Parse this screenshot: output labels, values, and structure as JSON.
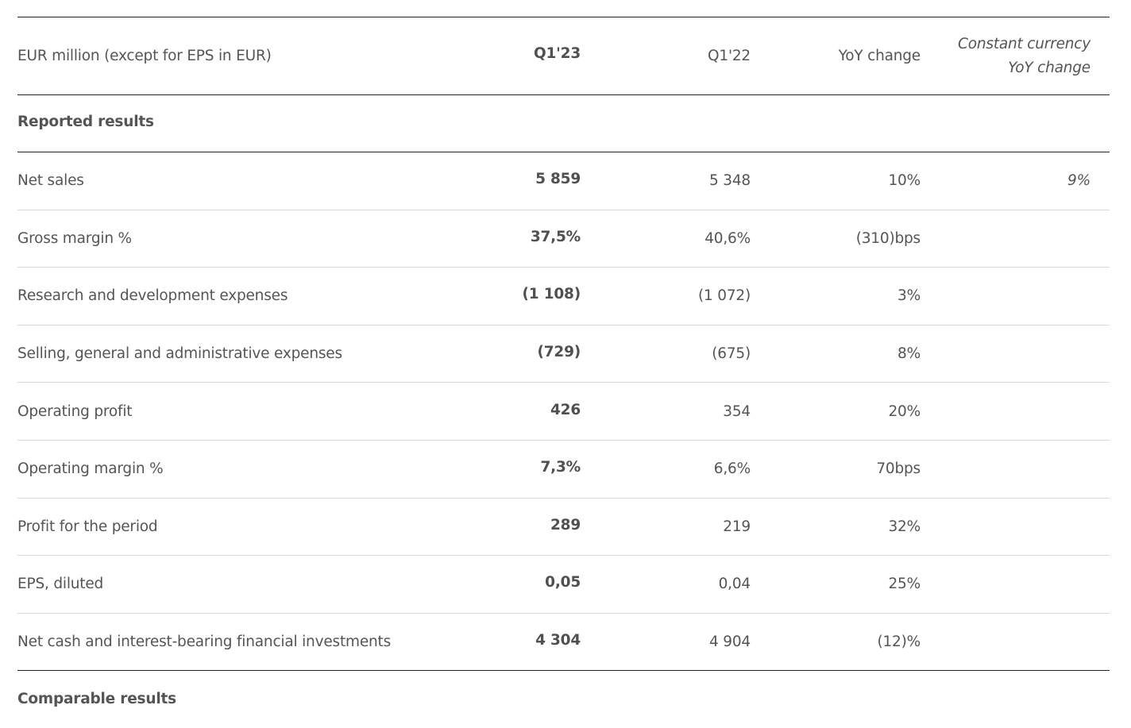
{
  "table": {
    "header": {
      "label": "EUR million (except for EPS in EUR)",
      "q123": "Q1'23",
      "q122": "Q1'22",
      "yoy": "YoY change",
      "constant": "Constant currency YoY change"
    },
    "sections": [
      {
        "title": "Reported results",
        "rows": [
          {
            "label": "Net sales",
            "q123": "5 859",
            "q122": "5 348",
            "yoy": "10%",
            "constant": "9%"
          },
          {
            "label": "Gross margin %",
            "q123": "37,5%",
            "q122": "40,6%",
            "yoy": "(310)bps",
            "constant": ""
          },
          {
            "label": "Research and development expenses",
            "q123": "(1 108)",
            "q122": "(1 072)",
            "yoy": "3%",
            "constant": ""
          },
          {
            "label": "Selling, general and administrative expenses",
            "q123": "(729)",
            "q122": "(675)",
            "yoy": "8%",
            "constant": ""
          },
          {
            "label": "Operating profit",
            "q123": "426",
            "q122": "354",
            "yoy": "20%",
            "constant": ""
          },
          {
            "label": "Operating margin %",
            "q123": "7,3%",
            "q122": "6,6%",
            "yoy": "70bps",
            "constant": ""
          },
          {
            "label": "Profit for the period",
            "q123": "289",
            "q122": "219",
            "yoy": "32%",
            "constant": ""
          },
          {
            "label": "EPS, diluted",
            "q123": "0,05",
            "q122": "0,04",
            "yoy": "25%",
            "constant": ""
          },
          {
            "label": "Net cash and interest-bearing financial investments",
            "q123": "4 304",
            "q122": "4 904",
            "yoy": "(12)%",
            "constant": ""
          }
        ]
      },
      {
        "title": "Comparable results",
        "rows": []
      }
    ]
  }
}
